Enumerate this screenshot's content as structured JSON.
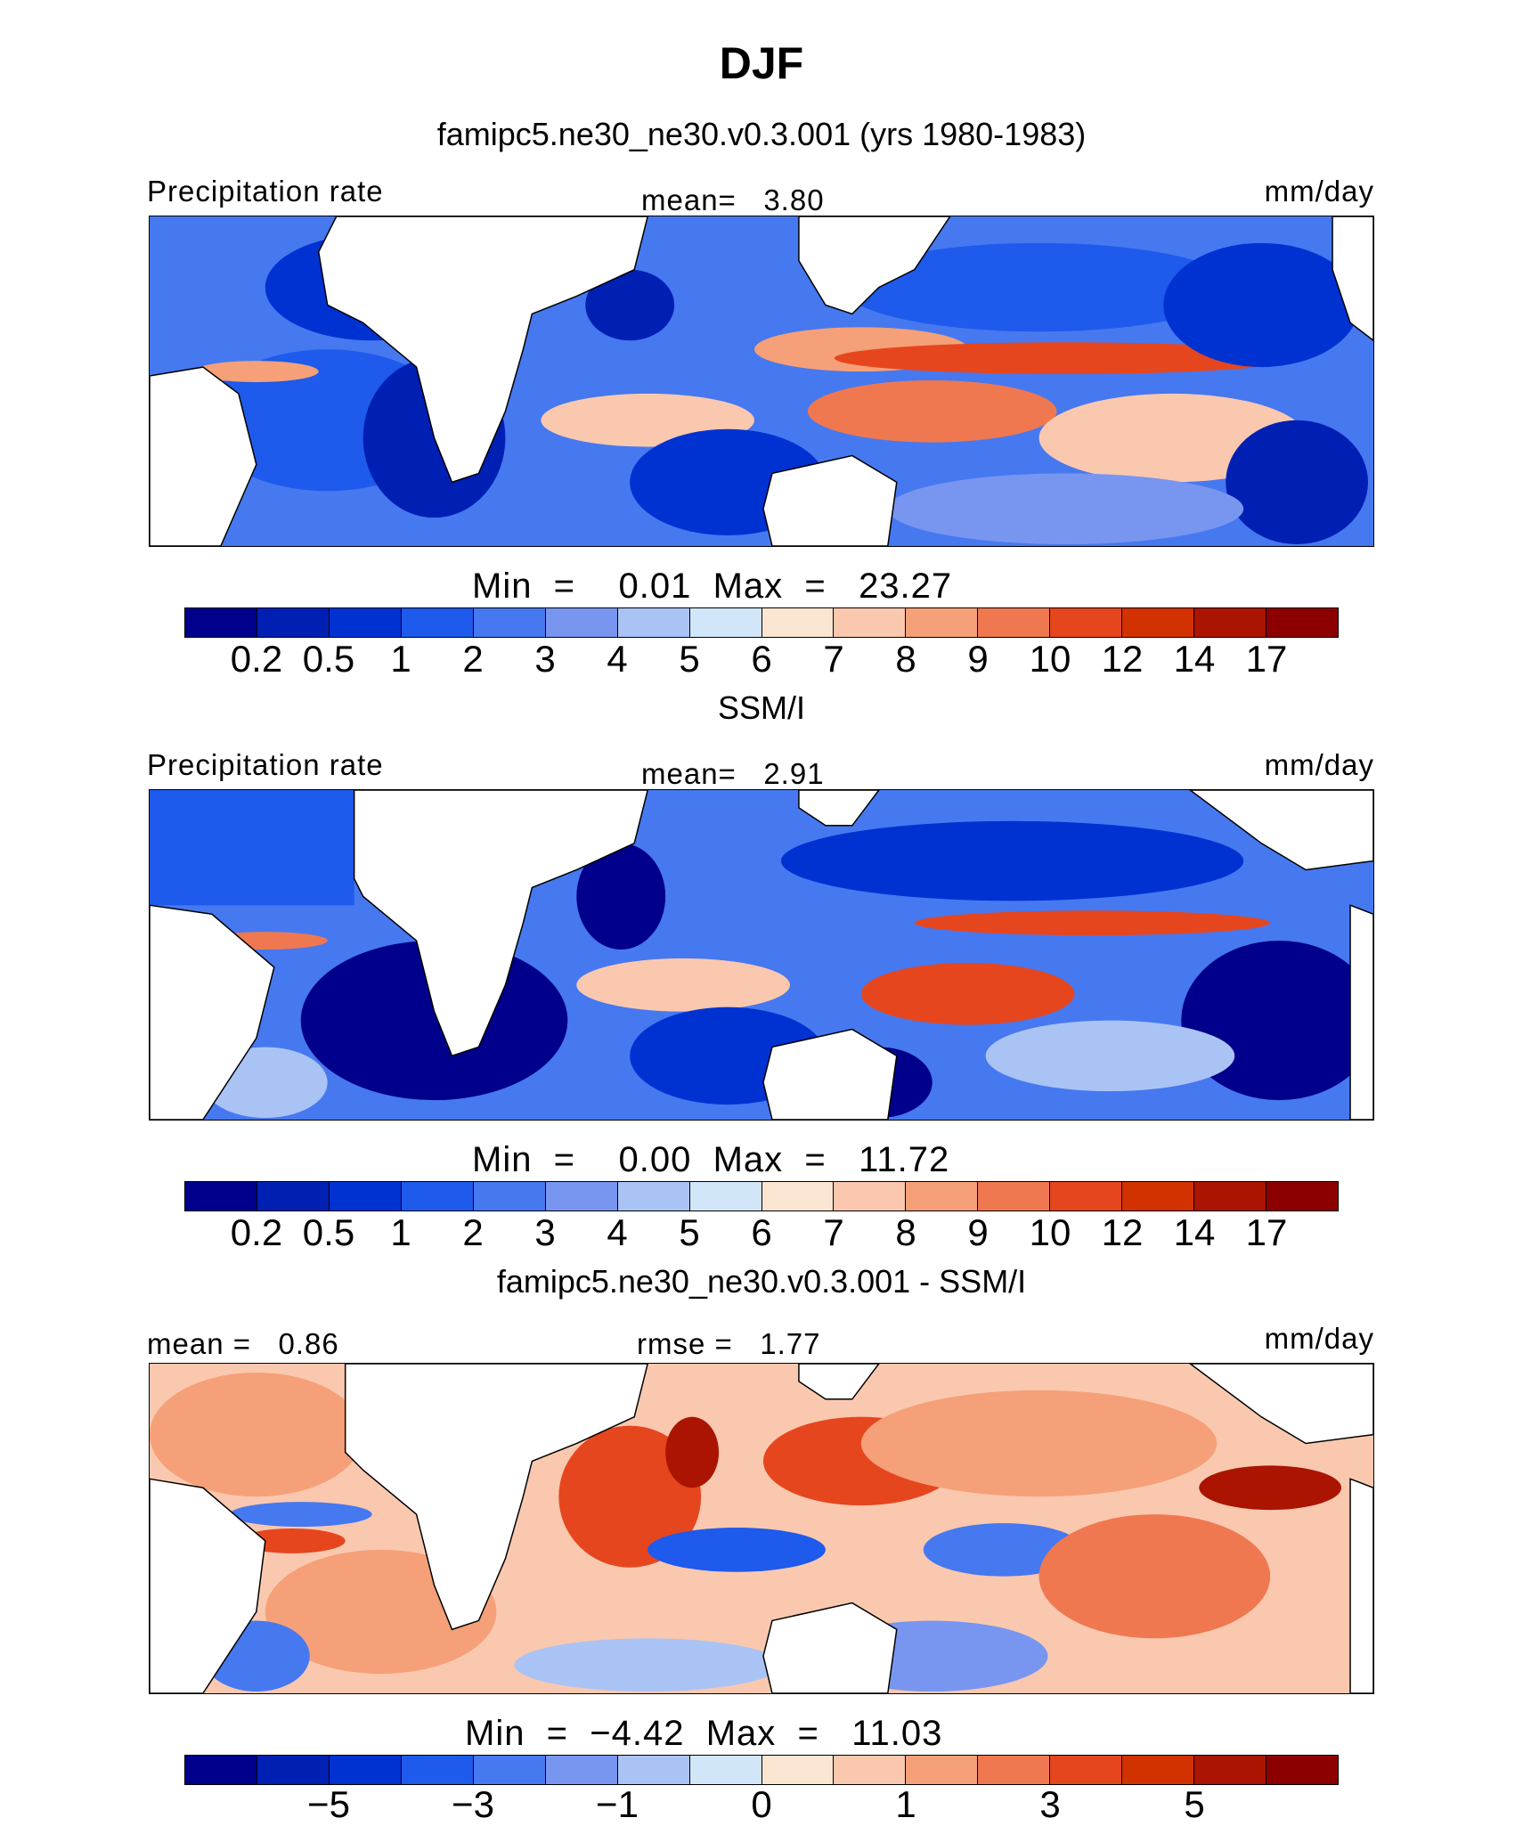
{
  "season": "DJF",
  "panels": [
    {
      "heading": "famipc5.ne30_ne30.v0.3.001 (yrs 1980-1983)",
      "left_label": "Precipitation rate",
      "center_label": "mean=   3.80",
      "units": "mm/day",
      "minmax": "Min  =    0.01  Max  =   23.27",
      "tick_labels": [
        "0.2",
        "0.5",
        "1",
        "2",
        "3",
        "4",
        "5",
        "6",
        "7",
        "8",
        "9",
        "10",
        "12",
        "14",
        "17"
      ]
    },
    {
      "heading": "SSM/I",
      "left_label": "Precipitation rate",
      "center_label": "mean=   2.91",
      "units": "mm/day",
      "minmax": "Min  =    0.00  Max  =   11.72",
      "tick_labels": [
        "0.2",
        "0.5",
        "1",
        "2",
        "3",
        "4",
        "5",
        "6",
        "7",
        "8",
        "9",
        "10",
        "12",
        "14",
        "17"
      ]
    },
    {
      "heading": "famipc5.ne30_ne30.v0.3.001 - SSM/I",
      "left_label": "mean =   0.86",
      "center_label": "rmse =   1.77",
      "units": "mm/day",
      "minmax": "Min  =  −4.42  Max  =   11.03",
      "tick_labels": [
        "−5",
        "−3",
        "−1",
        "0",
        "1",
        "3",
        "5"
      ]
    }
  ],
  "colors": {
    "abs_scale": [
      "#00008c",
      "#0020b4",
      "#0032d2",
      "#1e5aeb",
      "#4678f0",
      "#7896f0",
      "#aac3f5",
      "#d2e6fa",
      "#fae6d2",
      "#fac8af",
      "#f5a078",
      "#f07850",
      "#e6461e",
      "#d23200",
      "#aa1400",
      "#8c0000"
    ],
    "diff_scale": [
      "#00008c",
      "#0020b4",
      "#0032d2",
      "#1e5aeb",
      "#4678f0",
      "#7896f0",
      "#aac3f5",
      "#d2e6fa",
      "#fae6d2",
      "#fac8af",
      "#f5a078",
      "#f07850",
      "#e6461e",
      "#d23200",
      "#aa1400",
      "#8c0000"
    ]
  }
}
